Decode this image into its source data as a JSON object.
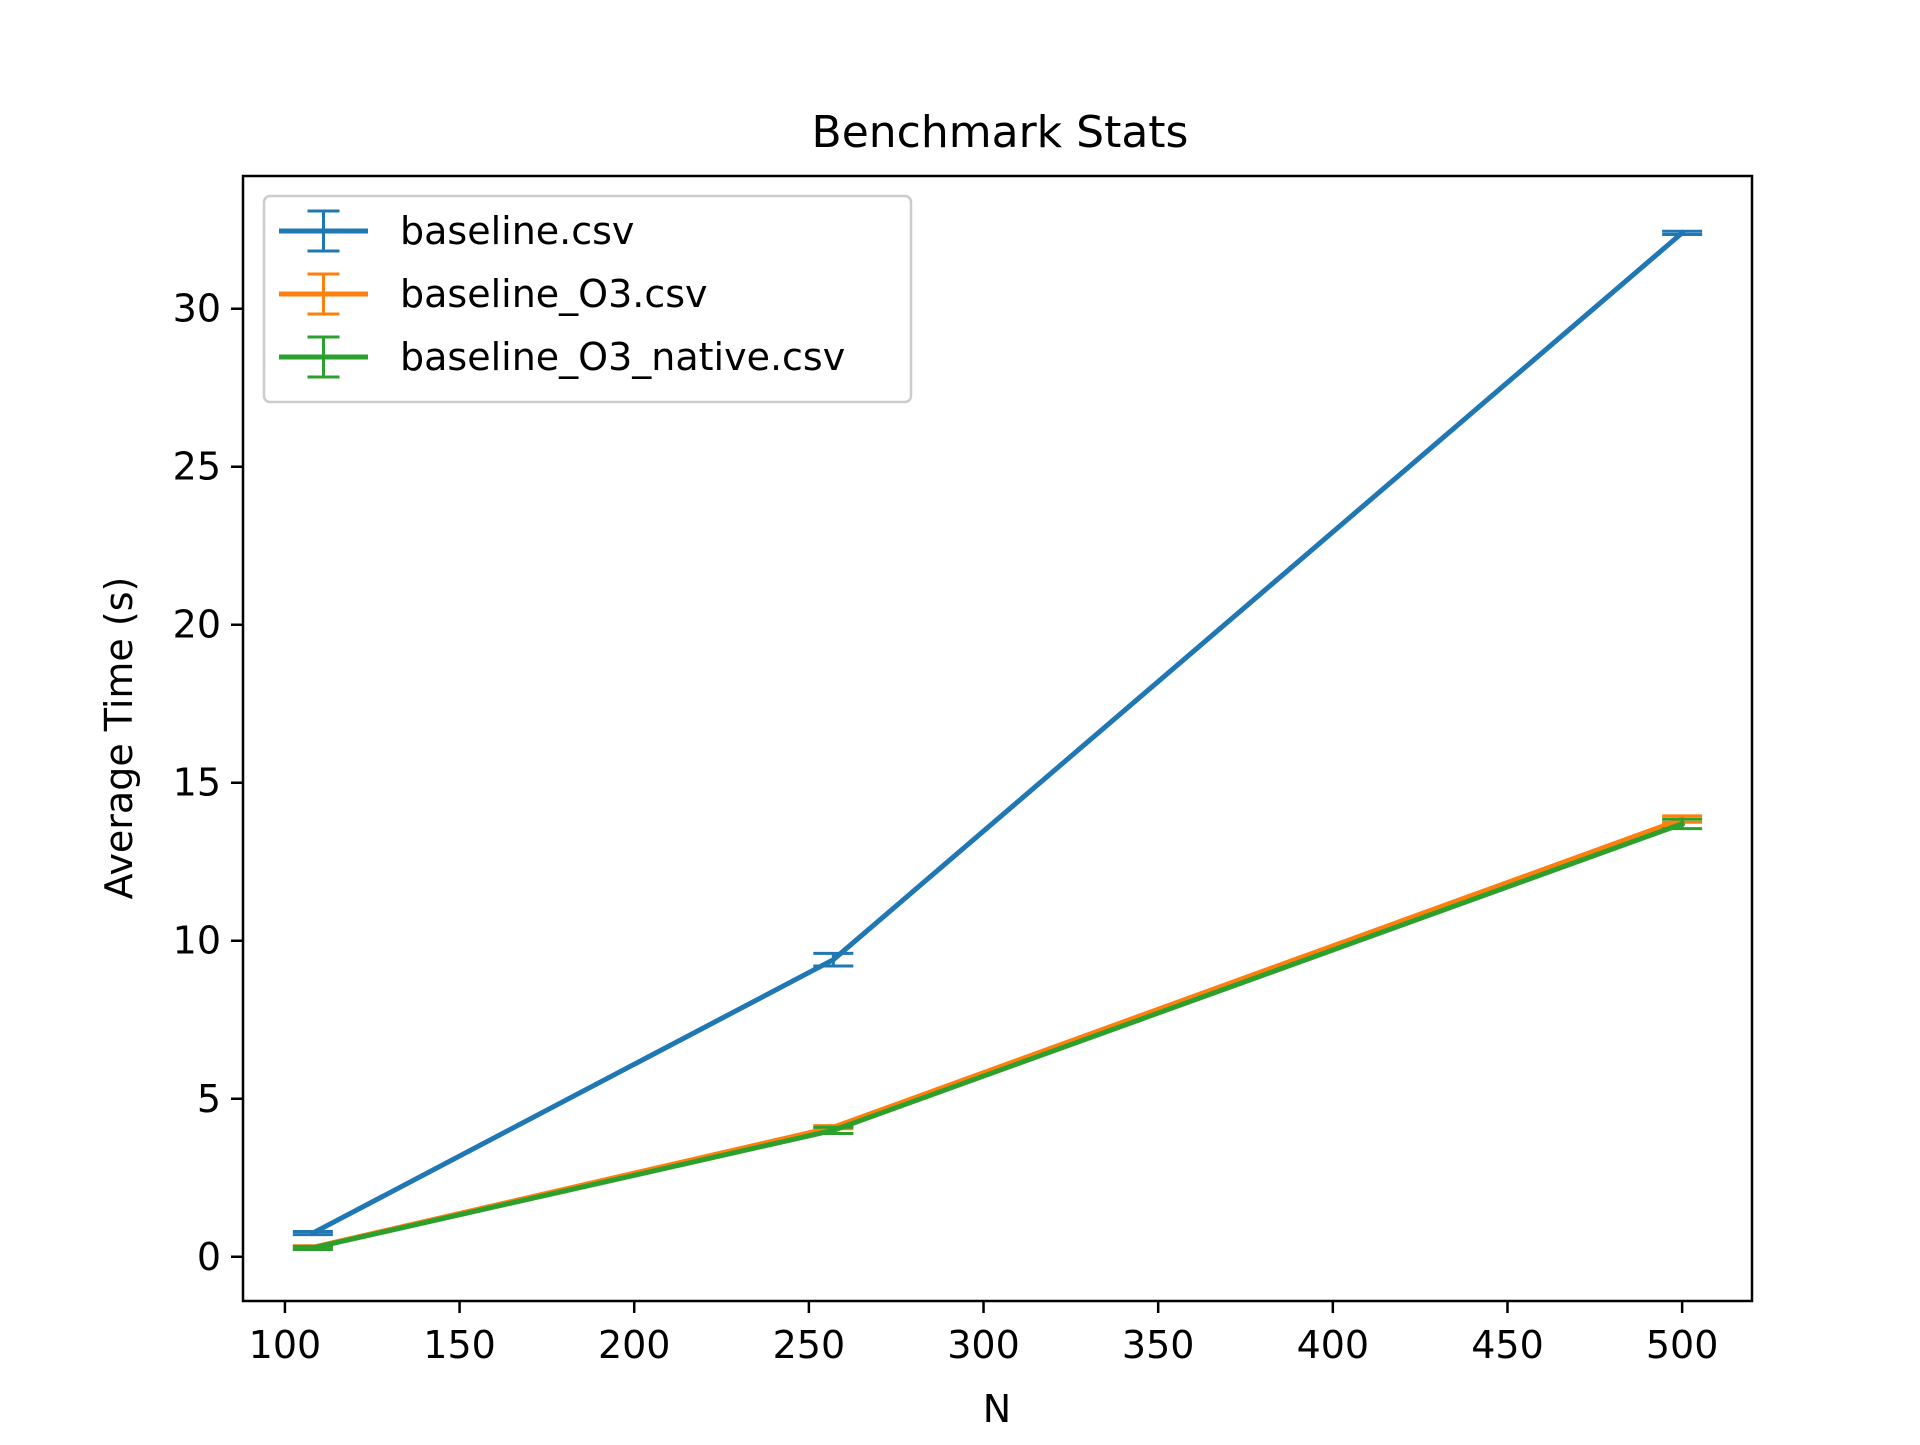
{
  "chart_data": {
    "type": "line",
    "title": "Benchmark Stats",
    "xlabel": "N",
    "ylabel": "Average Time (s)",
    "xlim": [
      88,
      520
    ],
    "ylim": [
      -1.4,
      34.2
    ],
    "xticks": [
      100,
      150,
      200,
      250,
      300,
      350,
      400,
      450,
      500
    ],
    "xtick_labels": [
      "100",
      "150",
      "200",
      "250",
      "300",
      "350",
      "400",
      "450",
      "500"
    ],
    "yticks": [
      0,
      5,
      10,
      15,
      20,
      25,
      30
    ],
    "ytick_labels": [
      "0",
      "5",
      "10",
      "15",
      "20",
      "25",
      "30"
    ],
    "grid": false,
    "legend_position": "top-left",
    "error_bars": true,
    "series": [
      {
        "name": "baseline.csv",
        "color": "#1f77b4",
        "x": [
          108,
          257,
          500
        ],
        "y": [
          0.75,
          9.4,
          32.4
        ],
        "yerr": [
          0.05,
          0.2,
          0.05
        ]
      },
      {
        "name": "baseline_O3.csv",
        "color": "#ff7f0e",
        "x": [
          108,
          257,
          500
        ],
        "y": [
          0.3,
          4.1,
          13.85
        ],
        "yerr": [
          0.05,
          0.05,
          0.1
        ]
      },
      {
        "name": "baseline_O3_native.csv",
        "color": "#2ca02c",
        "x": [
          108,
          257,
          500
        ],
        "y": [
          0.28,
          4.0,
          13.7
        ],
        "yerr": [
          0.05,
          0.1,
          0.15
        ]
      }
    ]
  }
}
